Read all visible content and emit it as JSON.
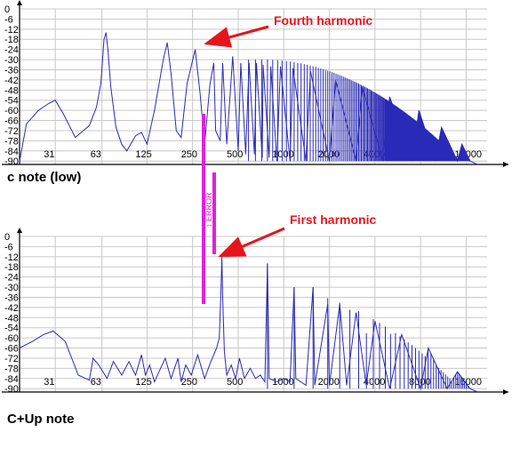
{
  "chart_data": [
    {
      "type": "line",
      "caption": "c note (low)",
      "x_scale": "log",
      "xlim": [
        18,
        22000
      ],
      "ylim": [
        -92,
        0
      ],
      "grid": true,
      "y_ticks": [
        "0",
        "-6",
        "-12",
        "-18",
        "-24",
        "-30",
        "-36",
        "-42",
        "-48",
        "-54",
        "-60",
        "-66",
        "-72",
        "-78",
        "-84",
        "-90"
      ],
      "x_ticks": [
        "31",
        "63",
        "125",
        "250",
        "500",
        "1000",
        "2000",
        "4000",
        "8000",
        "16000"
      ],
      "fundamental_hz": 65,
      "spectrum": [
        [
          18,
          -90
        ],
        [
          20,
          -68
        ],
        [
          24,
          -60
        ],
        [
          28,
          -56
        ],
        [
          31,
          -54
        ],
        [
          35,
          -62
        ],
        [
          42,
          -76
        ],
        [
          52,
          -69
        ],
        [
          58,
          -58
        ],
        [
          62,
          -44
        ],
        [
          65,
          -18
        ],
        [
          67,
          -14
        ],
        [
          69,
          -24
        ],
        [
          72,
          -46
        ],
        [
          78,
          -70
        ],
        [
          85,
          -80
        ],
        [
          92,
          -84
        ],
        [
          105,
          -75
        ],
        [
          115,
          -73
        ],
        [
          125,
          -80
        ],
        [
          140,
          -60
        ],
        [
          160,
          -30
        ],
        [
          170,
          -20
        ],
        [
          180,
          -38
        ],
        [
          195,
          -72
        ],
        [
          210,
          -76
        ],
        [
          230,
          -44
        ],
        [
          260,
          -24
        ],
        [
          280,
          -50
        ],
        [
          300,
          -80
        ],
        [
          325,
          -45
        ],
        [
          345,
          -32
        ],
        [
          355,
          -72
        ],
        [
          380,
          -78
        ],
        [
          395,
          -32
        ],
        [
          420,
          -80
        ],
        [
          460,
          -28
        ],
        [
          500,
          -84
        ],
        [
          520,
          -32
        ],
        [
          560,
          -86
        ],
        [
          590,
          -32
        ],
        [
          640,
          -86
        ],
        [
          660,
          -32
        ],
        [
          720,
          -88
        ],
        [
          730,
          -33
        ],
        [
          800,
          -88
        ],
        [
          820,
          -34
        ],
        [
          900,
          -90
        ],
        [
          950,
          -34
        ],
        [
          1100,
          -90
        ],
        [
          1150,
          -35
        ],
        [
          1400,
          -90
        ],
        [
          1500,
          -37
        ],
        [
          2000,
          -90
        ],
        [
          2200,
          -42
        ],
        [
          3000,
          -90
        ],
        [
          3300,
          -46
        ],
        [
          4500,
          -90
        ],
        [
          5000,
          -52
        ],
        [
          7000,
          -90
        ],
        [
          7800,
          -60
        ],
        [
          10000,
          -90
        ],
        [
          11000,
          -70
        ],
        [
          14000,
          -90
        ],
        [
          15000,
          -80
        ],
        [
          17000,
          -90
        ],
        [
          19000,
          -92
        ]
      ],
      "annotations": [
        {
          "text": "Fourth harmonic",
          "color": "#e8141c"
        }
      ]
    },
    {
      "type": "line",
      "caption": "C+Up note",
      "x_scale": "log",
      "xlim": [
        18,
        22000
      ],
      "ylim": [
        -92,
        0
      ],
      "grid": true,
      "y_ticks": [
        "0",
        "-6",
        "-12",
        "-18",
        "-24",
        "-30",
        "-36",
        "-42",
        "-48",
        "-54",
        "-60",
        "-66",
        "-72",
        "-78",
        "-84",
        "-90"
      ],
      "x_ticks": [
        "31",
        "63",
        "125",
        "250",
        "500",
        "1000",
        "2000",
        "4000",
        "8000",
        "16000"
      ],
      "fundamental_hz": 390,
      "spectrum": [
        [
          18,
          -66
        ],
        [
          22,
          -62
        ],
        [
          26,
          -58
        ],
        [
          30,
          -56
        ],
        [
          36,
          -62
        ],
        [
          44,
          -82
        ],
        [
          52,
          -85
        ],
        [
          55,
          -72
        ],
        [
          60,
          -76
        ],
        [
          68,
          -84
        ],
        [
          75,
          -74
        ],
        [
          85,
          -82
        ],
        [
          95,
          -74
        ],
        [
          105,
          -82
        ],
        [
          115,
          -70
        ],
        [
          122,
          -82
        ],
        [
          130,
          -76
        ],
        [
          140,
          -86
        ],
        [
          150,
          -80
        ],
        [
          165,
          -72
        ],
        [
          180,
          -84
        ],
        [
          200,
          -72
        ],
        [
          210,
          -86
        ],
        [
          225,
          -76
        ],
        [
          245,
          -82
        ],
        [
          270,
          -70
        ],
        [
          300,
          -84
        ],
        [
          330,
          -74
        ],
        [
          360,
          -66
        ],
        [
          375,
          -60
        ],
        [
          385,
          -32
        ],
        [
          390,
          -12
        ],
        [
          395,
          -36
        ],
        [
          405,
          -68
        ],
        [
          420,
          -82
        ],
        [
          450,
          -76
        ],
        [
          480,
          -84
        ],
        [
          510,
          -72
        ],
        [
          550,
          -84
        ],
        [
          600,
          -78
        ],
        [
          650,
          -84
        ],
        [
          700,
          -82
        ],
        [
          750,
          -86
        ],
        [
          780,
          -16
        ],
        [
          800,
          -84
        ],
        [
          900,
          -86
        ],
        [
          1000,
          -84
        ],
        [
          1100,
          -86
        ],
        [
          1170,
          -30
        ],
        [
          1200,
          -84
        ],
        [
          1400,
          -88
        ],
        [
          1560,
          -30
        ],
        [
          1600,
          -88
        ],
        [
          1950,
          -40
        ],
        [
          2000,
          -88
        ],
        [
          2340,
          -40
        ],
        [
          2600,
          -88
        ],
        [
          3000,
          -45
        ],
        [
          3500,
          -88
        ],
        [
          4000,
          -50
        ],
        [
          5000,
          -90
        ],
        [
          6000,
          -58
        ],
        [
          8000,
          -90
        ],
        [
          9000,
          -66
        ],
        [
          12000,
          -90
        ],
        [
          14000,
          -80
        ],
        [
          17000,
          -90
        ],
        [
          19000,
          -92
        ]
      ],
      "annotations": [
        {
          "text": "First harmonic",
          "color": "#e8141c"
        }
      ]
    }
  ],
  "error_marker": {
    "text": "↕ ERROR",
    "color": "#e020e0"
  }
}
